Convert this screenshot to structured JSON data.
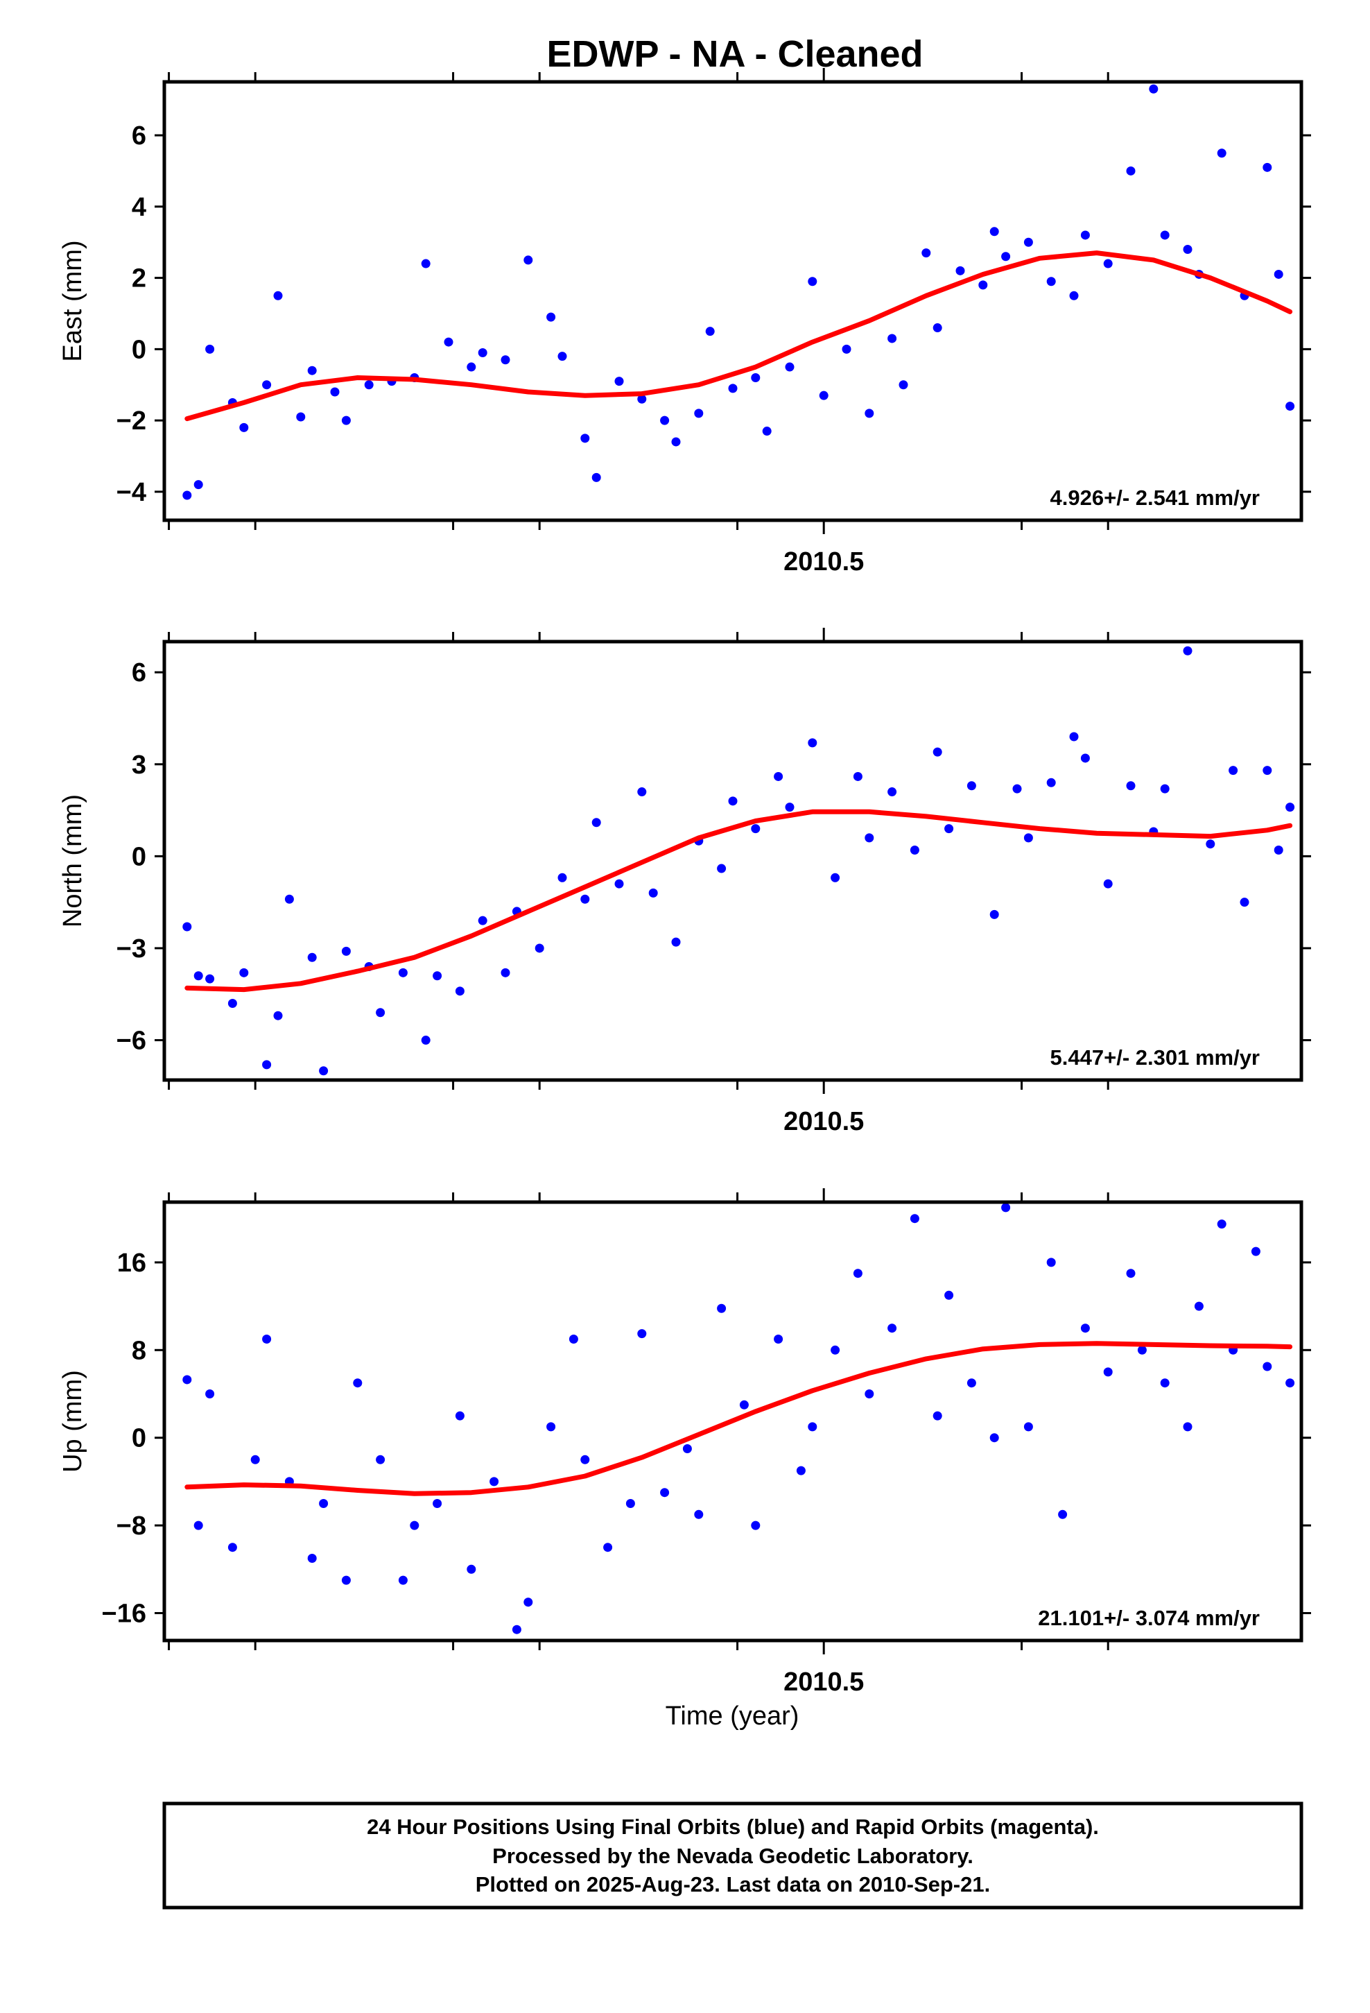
{
  "title": "EDWP  - NA - Cleaned",
  "xlabel": "Time (year)",
  "footer": {
    "lines": [
      "24 Hour Positions Using Final Orbits (blue) and Rapid Orbits (magenta).",
      "Processed by the Nevada Geodetic Laboratory.",
      "Plotted on 2025-Aug-23. Last data on 2010-Sep-21."
    ]
  },
  "colors": {
    "points": "#0000ff",
    "fit": "#ff0000",
    "frame": "#000000"
  },
  "chart_data": [
    {
      "type": "scatter",
      "ylabel": "East (mm)",
      "xlim": [
        2009.92,
        2010.92
      ],
      "ylim": [
        -4.8,
        7.5
      ],
      "yticks": [
        -4,
        -2,
        0,
        2,
        4,
        6
      ],
      "xtick_label": "2010.5",
      "rate": "4.926+/- 2.541 mm/yr",
      "series": [
        {
          "x": [
            2009.94,
            2009.95,
            2009.96,
            2009.98,
            2009.99,
            2010.01,
            2010.02,
            2010.04,
            2010.05,
            2010.07,
            2010.08,
            2010.1,
            2010.12,
            2010.14,
            2010.15,
            2010.17,
            2010.19,
            2010.2,
            2010.22,
            2010.24,
            2010.26,
            2010.27,
            2010.29,
            2010.3,
            2010.32,
            2010.34,
            2010.36,
            2010.37,
            2010.39,
            2010.4,
            2010.42,
            2010.44,
            2010.45,
            2010.47,
            2010.49,
            2010.5,
            2010.52,
            2010.54,
            2010.56,
            2010.57,
            2010.59,
            2010.6,
            2010.62,
            2010.64,
            2010.65,
            2010.66,
            2010.68,
            2010.7,
            2010.72,
            2010.73,
            2010.75,
            2010.77,
            2010.79,
            2010.8,
            2010.82,
            2010.83,
            2010.85,
            2010.87,
            2010.89,
            2010.9,
            2010.91
          ],
          "y": [
            -4.1,
            -3.8,
            0.0,
            -1.5,
            -2.2,
            -1.0,
            1.5,
            -1.9,
            -0.6,
            -1.2,
            -2.0,
            -1.0,
            -0.9,
            -0.8,
            2.4,
            0.2,
            -0.5,
            -0.1,
            -0.3,
            2.5,
            0.9,
            -0.2,
            -2.5,
            -3.6,
            -0.9,
            -1.4,
            -2.0,
            -2.6,
            -1.8,
            0.5,
            -1.1,
            -0.8,
            -2.3,
            -0.5,
            1.9,
            -1.3,
            0.0,
            -1.8,
            0.3,
            -1.0,
            2.7,
            0.6,
            2.2,
            1.8,
            3.3,
            2.6,
            3.0,
            1.9,
            1.5,
            3.2,
            2.4,
            5.0,
            7.3,
            3.2,
            2.8,
            2.1,
            5.5,
            1.5,
            5.1,
            2.1,
            -1.6
          ]
        }
      ],
      "fit": {
        "x": [
          2009.94,
          2009.99,
          2010.04,
          2010.09,
          2010.14,
          2010.19,
          2010.24,
          2010.29,
          2010.34,
          2010.39,
          2010.44,
          2010.49,
          2010.54,
          2010.59,
          2010.64,
          2010.69,
          2010.74,
          2010.79,
          2010.84,
          2010.89,
          2010.91
        ],
        "y": [
          -1.95,
          -1.5,
          -1.0,
          -0.8,
          -0.85,
          -1.0,
          -1.2,
          -1.3,
          -1.25,
          -1.0,
          -0.5,
          0.2,
          0.8,
          1.5,
          2.1,
          2.55,
          2.7,
          2.5,
          2.0,
          1.35,
          1.05
        ]
      }
    },
    {
      "type": "scatter",
      "ylabel": "North (mm)",
      "xlim": [
        2009.92,
        2010.92
      ],
      "ylim": [
        -7.3,
        7.0
      ],
      "yticks": [
        -6,
        -3,
        0,
        3,
        6
      ],
      "xtick_label": "2010.5",
      "rate": "5.447+/- 2.301 mm/yr",
      "series": [
        {
          "x": [
            2009.94,
            2009.95,
            2009.96,
            2009.98,
            2009.99,
            2010.01,
            2010.02,
            2010.03,
            2010.05,
            2010.06,
            2010.08,
            2010.1,
            2010.11,
            2010.13,
            2010.15,
            2010.16,
            2010.18,
            2010.2,
            2010.22,
            2010.23,
            2010.25,
            2010.27,
            2010.29,
            2010.3,
            2010.32,
            2010.34,
            2010.35,
            2010.37,
            2010.39,
            2010.41,
            2010.42,
            2010.44,
            2010.46,
            2010.47,
            2010.49,
            2010.51,
            2010.53,
            2010.54,
            2010.56,
            2010.58,
            2010.6,
            2010.61,
            2010.63,
            2010.65,
            2010.67,
            2010.68,
            2010.7,
            2010.72,
            2010.73,
            2010.75,
            2010.77,
            2010.79,
            2010.8,
            2010.82,
            2010.84,
            2010.86,
            2010.87,
            2010.89,
            2010.9,
            2010.91
          ],
          "y": [
            -2.3,
            -3.9,
            -4.0,
            -4.8,
            -3.8,
            -6.8,
            -5.2,
            -1.4,
            -3.3,
            -7.0,
            -3.1,
            -3.6,
            -5.1,
            -3.8,
            -6.0,
            -3.9,
            -4.4,
            -2.1,
            -3.8,
            -1.8,
            -3.0,
            -0.7,
            -1.4,
            1.1,
            -0.9,
            2.1,
            -1.2,
            -2.8,
            0.5,
            -0.4,
            1.8,
            0.9,
            2.6,
            1.6,
            3.7,
            -0.7,
            2.6,
            0.6,
            2.1,
            0.2,
            3.4,
            0.9,
            2.3,
            -1.9,
            2.2,
            0.6,
            2.4,
            3.9,
            3.2,
            -0.9,
            2.3,
            0.8,
            2.2,
            6.7,
            0.4,
            2.8,
            -1.5,
            2.8,
            0.2,
            1.6
          ]
        }
      ],
      "fit": {
        "x": [
          2009.94,
          2009.99,
          2010.04,
          2010.09,
          2010.14,
          2010.19,
          2010.24,
          2010.29,
          2010.34,
          2010.39,
          2010.44,
          2010.49,
          2010.54,
          2010.59,
          2010.64,
          2010.69,
          2010.74,
          2010.79,
          2010.84,
          2010.89,
          2010.91
        ],
        "y": [
          -4.3,
          -4.35,
          -4.15,
          -3.75,
          -3.3,
          -2.6,
          -1.8,
          -1.0,
          -0.2,
          0.6,
          1.15,
          1.45,
          1.45,
          1.3,
          1.1,
          0.9,
          0.75,
          0.7,
          0.65,
          0.85,
          1.0
        ]
      }
    },
    {
      "type": "scatter",
      "ylabel": "Up (mm)",
      "xlim": [
        2009.92,
        2010.92
      ],
      "ylim": [
        -18.5,
        21.5
      ],
      "yticks": [
        -16,
        -8,
        0,
        8,
        16
      ],
      "xtick_label": "2010.5",
      "rate": "21.101+/- 3.074 mm/yr",
      "series": [
        {
          "x": [
            2009.94,
            2009.95,
            2009.96,
            2009.98,
            2010.0,
            2010.01,
            2010.03,
            2010.05,
            2010.06,
            2010.08,
            2010.09,
            2010.11,
            2010.13,
            2010.14,
            2010.16,
            2010.18,
            2010.19,
            2010.21,
            2010.23,
            2010.24,
            2010.26,
            2010.28,
            2010.29,
            2010.31,
            2010.33,
            2010.34,
            2010.36,
            2010.38,
            2010.39,
            2010.41,
            2010.43,
            2010.44,
            2010.46,
            2010.48,
            2010.49,
            2010.51,
            2010.53,
            2010.54,
            2010.56,
            2010.58,
            2010.6,
            2010.61,
            2010.63,
            2010.65,
            2010.66,
            2010.68,
            2010.7,
            2010.71,
            2010.73,
            2010.75,
            2010.77,
            2010.78,
            2010.8,
            2010.82,
            2010.83,
            2010.85,
            2010.86,
            2010.88,
            2010.89,
            2010.91
          ],
          "y": [
            5.3,
            -8.0,
            4.0,
            -10.0,
            -2.0,
            9.0,
            -4.0,
            -11.0,
            -6.0,
            -13.0,
            5.0,
            -2.0,
            -13.0,
            -8.0,
            -6.0,
            2.0,
            -12.0,
            -4.0,
            -17.5,
            -15.0,
            1.0,
            9.0,
            -2.0,
            -10.0,
            -6.0,
            9.5,
            -5.0,
            -1.0,
            -7.0,
            11.8,
            3.0,
            -8.0,
            9.0,
            -3.0,
            1.0,
            8.0,
            15.0,
            4.0,
            10.0,
            20.0,
            2.0,
            13.0,
            5.0,
            0.0,
            21.0,
            1.0,
            16.0,
            -7.0,
            10.0,
            6.0,
            15.0,
            8.0,
            5.0,
            1.0,
            12.0,
            19.5,
            8.0,
            17.0,
            6.5,
            5.0
          ]
        }
      ],
      "fit": {
        "x": [
          2009.94,
          2009.99,
          2010.04,
          2010.09,
          2010.14,
          2010.19,
          2010.24,
          2010.29,
          2010.34,
          2010.39,
          2010.44,
          2010.49,
          2010.54,
          2010.59,
          2010.64,
          2010.69,
          2010.74,
          2010.79,
          2010.84,
          2010.89,
          2010.91
        ],
        "y": [
          -4.5,
          -4.3,
          -4.4,
          -4.8,
          -5.1,
          -5.0,
          -4.5,
          -3.5,
          -1.8,
          0.3,
          2.4,
          4.3,
          5.9,
          7.2,
          8.1,
          8.5,
          8.6,
          8.5,
          8.4,
          8.35,
          8.3
        ]
      }
    }
  ]
}
